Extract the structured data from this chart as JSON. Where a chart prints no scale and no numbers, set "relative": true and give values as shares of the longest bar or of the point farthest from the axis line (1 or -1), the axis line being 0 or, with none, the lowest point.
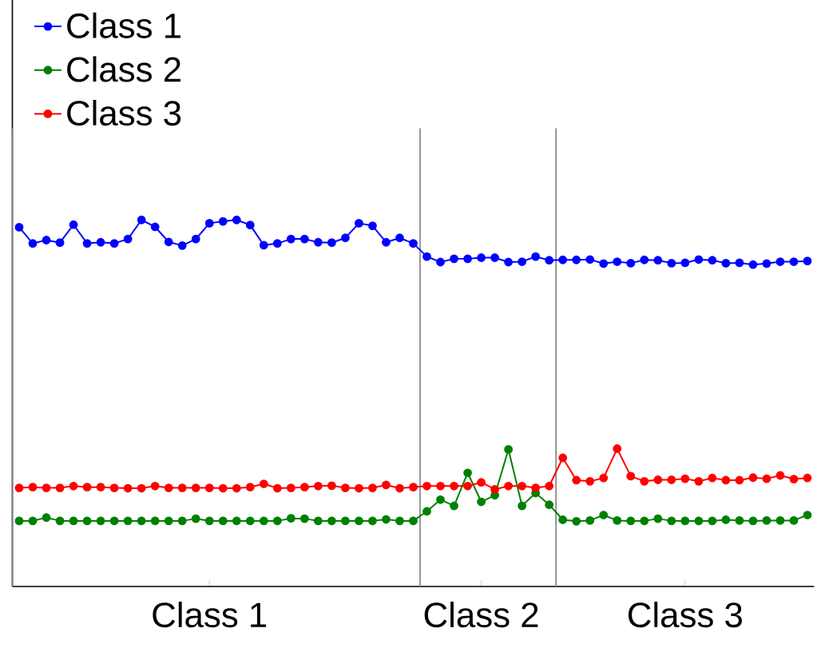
{
  "chart_data": {
    "type": "line",
    "relative": true,
    "categories": [
      null,
      null,
      null,
      null,
      null,
      null,
      null,
      null,
      null,
      null,
      null,
      null,
      null,
      null,
      "Class 1",
      null,
      null,
      null,
      null,
      null,
      null,
      null,
      null,
      null,
      null,
      null,
      null,
      null,
      null,
      null,
      null,
      null,
      null,
      null,
      "Class 2",
      null,
      null,
      null,
      null,
      null,
      null,
      null,
      null,
      null,
      null,
      null,
      null,
      null,
      null,
      "Class 3",
      null,
      null,
      null,
      null,
      null,
      null,
      null,
      null,
      null
    ],
    "series": [
      {
        "name": "Class 1",
        "color": "#0000ff",
        "values": [
          0.98,
          0.936,
          0.945,
          0.938,
          0.987,
          0.936,
          0.939,
          0.936,
          0.948,
          1.0,
          0.981,
          0.94,
          0.93,
          0.948,
          0.991,
          0.996,
          1.0,
          0.986,
          0.931,
          0.936,
          0.948,
          0.948,
          0.939,
          0.938,
          0.951,
          0.991,
          0.984,
          0.939,
          0.951,
          0.936,
          0.9,
          0.885,
          0.894,
          0.894,
          0.897,
          0.897,
          0.885,
          0.886,
          0.9,
          0.89,
          0.891,
          0.891,
          0.892,
          0.881,
          0.886,
          0.882,
          0.891,
          0.89,
          0.882,
          0.883,
          0.892,
          0.89,
          0.882,
          0.883,
          0.878,
          0.881,
          0.886,
          0.886,
          0.888
        ]
      },
      {
        "name": "Class 2",
        "color": "#008000",
        "values": [
          0.179,
          0.179,
          0.188,
          0.179,
          0.179,
          0.179,
          0.179,
          0.179,
          0.179,
          0.179,
          0.179,
          0.179,
          0.179,
          0.185,
          0.179,
          0.179,
          0.179,
          0.179,
          0.179,
          0.179,
          0.186,
          0.185,
          0.179,
          0.179,
          0.179,
          0.179,
          0.179,
          0.183,
          0.179,
          0.179,
          0.205,
          0.237,
          0.22,
          0.31,
          0.231,
          0.249,
          0.374,
          0.22,
          0.255,
          0.223,
          0.182,
          0.178,
          0.18,
          0.195,
          0.18,
          0.179,
          0.179,
          0.185,
          0.179,
          0.179,
          0.179,
          0.179,
          0.182,
          0.18,
          0.179,
          0.18,
          0.18,
          0.18,
          0.195
        ]
      },
      {
        "name": "Class 3",
        "color": "#ff0000",
        "values": [
          0.269,
          0.271,
          0.269,
          0.269,
          0.274,
          0.271,
          0.271,
          0.269,
          0.268,
          0.268,
          0.274,
          0.269,
          0.269,
          0.269,
          0.269,
          0.268,
          0.268,
          0.271,
          0.28,
          0.268,
          0.269,
          0.271,
          0.274,
          0.275,
          0.269,
          0.268,
          0.269,
          0.277,
          0.268,
          0.271,
          0.274,
          0.274,
          0.274,
          0.274,
          0.284,
          0.265,
          0.274,
          0.274,
          0.269,
          0.274,
          0.351,
          0.29,
          0.287,
          0.296,
          0.376,
          0.301,
          0.287,
          0.291,
          0.291,
          0.294,
          0.287,
          0.296,
          0.29,
          0.29,
          0.297,
          0.294,
          0.303,
          0.293,
          0.296
        ]
      }
    ],
    "tick_labels": "x",
    "grid": false,
    "legend": "top left",
    "marker": "circle",
    "line_style": "solid"
  }
}
